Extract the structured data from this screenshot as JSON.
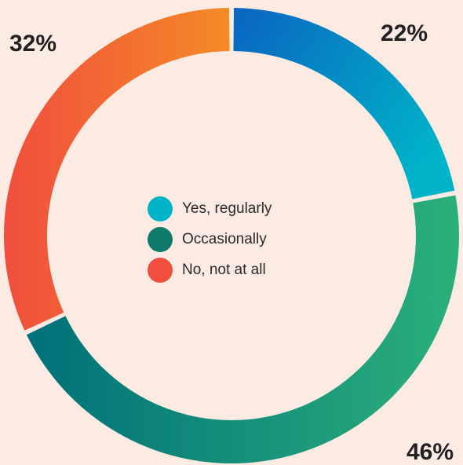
{
  "chart_data": {
    "type": "pie",
    "variant": "donut",
    "title": "",
    "slices": [
      {
        "label": "Yes, regularly",
        "value": 22,
        "display": "22%",
        "colors": [
          "#0a64c0",
          "#00b3c8"
        ],
        "swatch": "#00b3c8"
      },
      {
        "label": "Occasionally",
        "value": 46,
        "display": "46%",
        "colors": [
          "#00707a",
          "#2bb07a"
        ],
        "swatch": "#0e7a6c"
      },
      {
        "label": "No, not at all",
        "value": 32,
        "display": "32%",
        "colors": [
          "#f04e3e",
          "#f58a26"
        ],
        "swatch": "#f04e3e"
      }
    ],
    "legend_position": "center"
  }
}
